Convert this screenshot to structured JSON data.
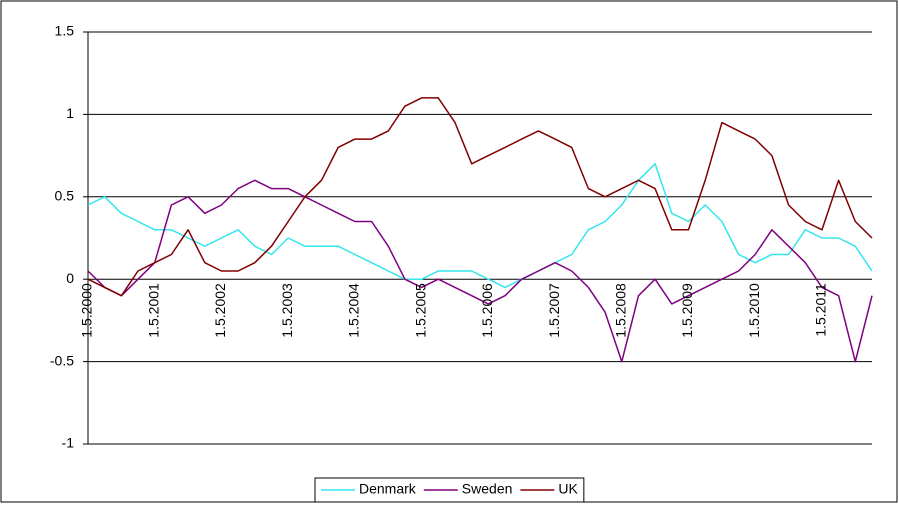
{
  "chart_data": {
    "type": "line",
    "categories": [
      "1.5.2000",
      null,
      null,
      null,
      "1.5.2001",
      null,
      null,
      null,
      "1.5.2002",
      null,
      null,
      null,
      "1.5.2003",
      null,
      null,
      null,
      "1.5.2004",
      null,
      null,
      null,
      "1.5.2005",
      null,
      null,
      null,
      "1.5.2006",
      null,
      null,
      null,
      "1.5.2007",
      null,
      null,
      null,
      "1.5.2008",
      null,
      null,
      null,
      "1.5.2009",
      null,
      null,
      null,
      "1.5.2010",
      null,
      null,
      null,
      "1.5.2011",
      null,
      null,
      null
    ],
    "series": [
      {
        "name": "Denmark",
        "color": "#33e6ee",
        "values": [
          0.45,
          0.5,
          0.4,
          0.35,
          0.3,
          0.3,
          0.25,
          0.2,
          0.25,
          0.3,
          0.2,
          0.15,
          0.25,
          0.2,
          0.2,
          0.2,
          0.15,
          0.1,
          0.05,
          0.0,
          0.0,
          0.05,
          0.05,
          0.05,
          0.0,
          -0.05,
          0.0,
          0.05,
          0.1,
          0.15,
          0.3,
          0.35,
          0.45,
          0.6,
          0.7,
          0.4,
          0.35,
          0.45,
          0.35,
          0.15,
          0.1,
          0.15,
          0.15,
          0.3,
          0.25,
          0.25,
          0.2,
          0.05
        ]
      },
      {
        "name": "Sweden",
        "color": "#800080",
        "values": [
          0.05,
          -0.05,
          -0.1,
          0.0,
          0.1,
          0.45,
          0.5,
          0.4,
          0.45,
          0.55,
          0.6,
          0.55,
          0.55,
          0.5,
          0.45,
          0.4,
          0.35,
          0.35,
          0.2,
          0.0,
          -0.05,
          0.0,
          -0.05,
          -0.1,
          -0.15,
          -0.1,
          0.0,
          0.05,
          0.1,
          0.05,
          -0.05,
          -0.2,
          -0.5,
          -0.1,
          0.0,
          -0.15,
          -0.1,
          -0.05,
          0.0,
          0.05,
          0.15,
          0.3,
          0.2,
          0.1,
          -0.05,
          -0.1,
          -0.5,
          -0.1
        ]
      },
      {
        "name": "UK",
        "color": "#800000",
        "values": [
          0.0,
          -0.05,
          -0.1,
          0.05,
          0.1,
          0.15,
          0.3,
          0.1,
          0.05,
          0.05,
          0.1,
          0.2,
          0.35,
          0.5,
          0.6,
          0.8,
          0.85,
          0.85,
          0.9,
          1.05,
          1.1,
          1.1,
          0.95,
          0.7,
          0.75,
          0.8,
          0.85,
          0.9,
          0.85,
          0.8,
          0.55,
          0.5,
          0.55,
          0.6,
          0.55,
          0.3,
          0.3,
          0.6,
          0.95,
          0.9,
          0.85,
          0.75,
          0.45,
          0.35,
          0.3,
          0.6,
          0.35,
          0.25
        ]
      }
    ],
    "ylim": [
      -1,
      1.5
    ],
    "yticks": [
      -1,
      -0.5,
      0,
      0.5,
      1,
      1.5
    ],
    "grid": true,
    "legend": "bottom"
  }
}
